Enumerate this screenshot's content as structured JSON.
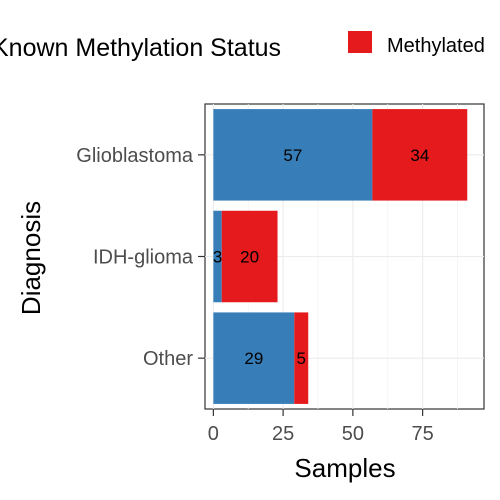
{
  "chart_data": {
    "type": "bar",
    "orientation": "horizontal",
    "stacked": true,
    "title": "Known Methylation Status",
    "xlabel": "Samples",
    "ylabel": "Diagnosis",
    "categories": [
      "Glioblastoma",
      "IDH-glioma",
      "Other"
    ],
    "series": [
      {
        "name": "",
        "color": "#377eb8",
        "values": [
          57,
          3,
          29
        ]
      },
      {
        "name": "Methylated",
        "color": "#e41a1c",
        "values": [
          34,
          20,
          5
        ]
      }
    ],
    "xlim": [
      -3,
      97
    ],
    "xticks": [
      0,
      25,
      50,
      75
    ],
    "grid": true,
    "legend": "top-right"
  }
}
